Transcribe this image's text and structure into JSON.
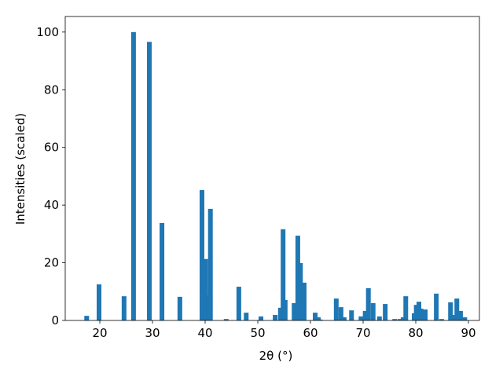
{
  "chart_data": {
    "type": "bar",
    "x_label": "2θ (°)",
    "y_label": "Intensities (scaled)",
    "x": [
      17.5,
      19.85,
      24.6,
      26.4,
      29.4,
      31.8,
      35.2,
      39.4,
      40.1,
      40.6,
      41.0,
      44.0,
      46.4,
      47.8,
      50.6,
      53.3,
      54.3,
      54.8,
      55.2,
      56.9,
      57.6,
      58.1,
      58.8,
      60.9,
      61.5,
      61.9,
      64.9,
      65.8,
      66.4,
      67.8,
      69.6,
      70.4,
      71.0,
      71.9,
      73.1,
      74.2,
      76.0,
      77.0,
      77.6,
      78.1,
      79.7,
      80.1,
      80.6,
      81.0,
      81.8,
      83.9,
      84.9,
      86.6,
      87.2,
      87.8,
      88.5,
      89.3
    ],
    "values": [
      1.6,
      12.5,
      8.4,
      100,
      96.6,
      33.8,
      8.2,
      45.2,
      21.3,
      8.7,
      38.7,
      0.5,
      11.7,
      2.7,
      1.4,
      1.9,
      4.4,
      31.6,
      7.1,
      6.0,
      29.4,
      19.9,
      13.1,
      2.7,
      1.1,
      0.3,
      7.6,
      4.6,
      1.1,
      3.5,
      1.4,
      3.3,
      11.2,
      6.0,
      1.4,
      5.7,
      0.5,
      0.5,
      1.1,
      8.4,
      2.5,
      5.4,
      6.5,
      4.1,
      3.8,
      9.3,
      0.5,
      6.3,
      1.9,
      7.6,
      3.3,
      1.1
    ],
    "color": "#1f77b4",
    "xlim": [
      13.43,
      92.09
    ],
    "xticks": [
      20,
      30,
      40,
      50,
      60,
      70,
      80,
      90
    ],
    "ylim": [
      0,
      105.4
    ],
    "yticks": [
      0,
      20,
      40,
      60,
      80,
      100
    ]
  }
}
